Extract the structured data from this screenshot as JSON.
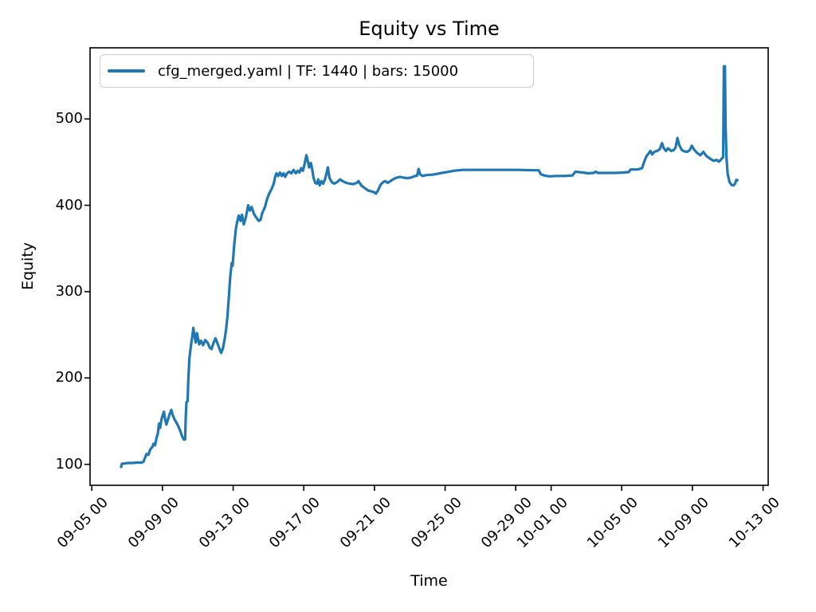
{
  "chart_data": {
    "type": "line",
    "title": "Equity vs Time",
    "xlabel": "Time",
    "ylabel": "Equity",
    "grid": false,
    "legend": {
      "position": "upper left",
      "label": "cfg_merged.yaml | TF: 1440 | bars: 15000",
      "line_color": "#1f77b4"
    },
    "x_encoding": "days since 09-05 00:00",
    "xlim_days": [
      -0.1,
      38.29
    ],
    "ylim": [
      75.7,
      582.4
    ],
    "y_ticks": [
      100,
      200,
      300,
      400,
      500
    ],
    "x_ticks": [
      {
        "label": "09-05 00",
        "day": 0
      },
      {
        "label": "09-09 00",
        "day": 4
      },
      {
        "label": "09-13 00",
        "day": 8
      },
      {
        "label": "09-17 00",
        "day": 12
      },
      {
        "label": "09-21 00",
        "day": 16
      },
      {
        "label": "09-25 00",
        "day": 20
      },
      {
        "label": "09-29 00",
        "day": 24
      },
      {
        "label": "10-01 00",
        "day": 26
      },
      {
        "label": "10-05 00",
        "day": 30
      },
      {
        "label": "10-09 00",
        "day": 34
      },
      {
        "label": "10-13 00",
        "day": 38
      }
    ],
    "series": [
      {
        "name": "cfg_merged.yaml | TF: 1440 | bars: 15000",
        "color": "#1f77b4",
        "points_day_equity": [
          [
            1.66,
            97
          ],
          [
            1.7,
            100.5
          ],
          [
            1.85,
            101
          ],
          [
            2.05,
            101.5
          ],
          [
            2.3,
            101.5
          ],
          [
            2.55,
            102
          ],
          [
            2.8,
            102
          ],
          [
            2.93,
            103
          ],
          [
            3.0,
            107
          ],
          [
            3.1,
            112
          ],
          [
            3.2,
            111
          ],
          [
            3.3,
            117
          ],
          [
            3.42,
            120
          ],
          [
            3.5,
            124
          ],
          [
            3.58,
            122
          ],
          [
            3.66,
            130
          ],
          [
            3.74,
            136
          ],
          [
            3.8,
            147
          ],
          [
            3.86,
            142
          ],
          [
            3.94,
            152
          ],
          [
            4.02,
            157
          ],
          [
            4.08,
            161
          ],
          [
            4.15,
            152
          ],
          [
            4.22,
            146
          ],
          [
            4.3,
            151
          ],
          [
            4.4,
            158
          ],
          [
            4.5,
            163
          ],
          [
            4.58,
            157
          ],
          [
            4.68,
            152
          ],
          [
            4.8,
            148
          ],
          [
            4.92,
            143
          ],
          [
            5.02,
            138
          ],
          [
            5.12,
            132
          ],
          [
            5.22,
            128.5
          ],
          [
            5.28,
            129
          ],
          [
            5.32,
            155
          ],
          [
            5.36,
            172
          ],
          [
            5.42,
            173
          ],
          [
            5.46,
            195
          ],
          [
            5.52,
            222
          ],
          [
            5.6,
            236
          ],
          [
            5.68,
            247
          ],
          [
            5.75,
            258
          ],
          [
            5.82,
            248
          ],
          [
            5.88,
            241
          ],
          [
            5.95,
            252
          ],
          [
            6.02,
            245
          ],
          [
            6.08,
            239
          ],
          [
            6.18,
            243
          ],
          [
            6.3,
            238
          ],
          [
            6.42,
            244
          ],
          [
            6.55,
            241
          ],
          [
            6.68,
            235
          ],
          [
            6.78,
            233.5
          ],
          [
            6.88,
            240
          ],
          [
            7.0,
            246
          ],
          [
            7.1,
            241
          ],
          [
            7.22,
            234
          ],
          [
            7.32,
            229
          ],
          [
            7.42,
            234
          ],
          [
            7.52,
            245
          ],
          [
            7.6,
            256
          ],
          [
            7.68,
            272
          ],
          [
            7.76,
            294
          ],
          [
            7.84,
            318
          ],
          [
            7.92,
            333
          ],
          [
            7.97,
            330
          ],
          [
            8.05,
            352
          ],
          [
            8.15,
            372
          ],
          [
            8.22,
            380
          ],
          [
            8.32,
            388
          ],
          [
            8.42,
            382
          ],
          [
            8.5,
            389
          ],
          [
            8.6,
            378
          ],
          [
            8.72,
            386
          ],
          [
            8.85,
            400
          ],
          [
            8.95,
            394
          ],
          [
            9.05,
            398
          ],
          [
            9.18,
            390
          ],
          [
            9.3,
            386
          ],
          [
            9.45,
            382
          ],
          [
            9.55,
            383
          ],
          [
            9.65,
            391
          ],
          [
            9.8,
            398
          ],
          [
            9.92,
            407
          ],
          [
            10.05,
            414
          ],
          [
            10.18,
            419
          ],
          [
            10.3,
            425
          ],
          [
            10.38,
            433
          ],
          [
            10.45,
            437
          ],
          [
            10.55,
            434
          ],
          [
            10.65,
            438
          ],
          [
            10.75,
            434
          ],
          [
            10.85,
            437
          ],
          [
            10.95,
            433
          ],
          [
            11.05,
            437
          ],
          [
            11.18,
            439
          ],
          [
            11.3,
            437
          ],
          [
            11.42,
            441
          ],
          [
            11.55,
            437
          ],
          [
            11.65,
            440
          ],
          [
            11.75,
            438
          ],
          [
            11.85,
            443
          ],
          [
            11.95,
            440
          ],
          [
            12.05,
            448
          ],
          [
            12.15,
            458
          ],
          [
            12.22,
            452
          ],
          [
            12.3,
            444
          ],
          [
            12.4,
            449
          ],
          [
            12.48,
            441
          ],
          [
            12.55,
            432
          ],
          [
            12.65,
            426
          ],
          [
            12.75,
            425
          ],
          [
            12.82,
            430
          ],
          [
            12.9,
            423
          ],
          [
            13.0,
            428
          ],
          [
            13.1,
            425
          ],
          [
            13.2,
            430
          ],
          [
            13.3,
            438
          ],
          [
            13.36,
            444
          ],
          [
            13.45,
            432
          ],
          [
            13.58,
            427
          ],
          [
            13.72,
            425
          ],
          [
            13.9,
            427
          ],
          [
            14.05,
            430
          ],
          [
            14.2,
            428
          ],
          [
            14.4,
            426
          ],
          [
            14.6,
            425
          ],
          [
            14.8,
            424.5
          ],
          [
            15.0,
            426
          ],
          [
            15.1,
            428
          ],
          [
            15.25,
            423
          ],
          [
            15.45,
            420
          ],
          [
            15.65,
            417
          ],
          [
            15.85,
            416
          ],
          [
            16.0,
            415
          ],
          [
            16.08,
            413.5
          ],
          [
            16.2,
            417
          ],
          [
            16.35,
            424
          ],
          [
            16.5,
            427
          ],
          [
            16.62,
            428
          ],
          [
            16.75,
            426
          ],
          [
            16.9,
            428
          ],
          [
            17.05,
            430
          ],
          [
            17.25,
            432
          ],
          [
            17.45,
            433
          ],
          [
            17.65,
            432
          ],
          [
            17.85,
            431.5
          ],
          [
            18.05,
            432
          ],
          [
            18.25,
            433.5
          ],
          [
            18.42,
            434.5
          ],
          [
            18.5,
            442
          ],
          [
            18.58,
            436
          ],
          [
            18.72,
            434
          ],
          [
            18.95,
            435
          ],
          [
            19.3,
            435.5
          ],
          [
            19.7,
            437
          ],
          [
            20.1,
            438.5
          ],
          [
            20.5,
            440
          ],
          [
            21.0,
            441
          ],
          [
            21.6,
            441
          ],
          [
            22.3,
            441
          ],
          [
            23.2,
            441
          ],
          [
            24.2,
            441
          ],
          [
            25.0,
            440.5
          ],
          [
            25.3,
            440.5
          ],
          [
            25.42,
            436
          ],
          [
            25.6,
            434.5
          ],
          [
            25.9,
            433.5
          ],
          [
            26.3,
            434
          ],
          [
            26.8,
            434
          ],
          [
            27.2,
            434.5
          ],
          [
            27.38,
            439
          ],
          [
            27.55,
            438.5
          ],
          [
            27.8,
            438
          ],
          [
            28.1,
            437
          ],
          [
            28.4,
            437.5
          ],
          [
            28.52,
            439
          ],
          [
            28.65,
            437.5
          ],
          [
            29.0,
            437.5
          ],
          [
            29.6,
            437.5
          ],
          [
            30.1,
            438
          ],
          [
            30.4,
            438.5
          ],
          [
            30.5,
            441.5
          ],
          [
            30.9,
            441.5
          ],
          [
            31.15,
            443
          ],
          [
            31.28,
            451
          ],
          [
            31.4,
            457
          ],
          [
            31.52,
            460
          ],
          [
            31.62,
            463
          ],
          [
            31.72,
            459
          ],
          [
            31.85,
            462
          ],
          [
            32.0,
            463
          ],
          [
            32.15,
            465
          ],
          [
            32.28,
            472
          ],
          [
            32.38,
            466
          ],
          [
            32.5,
            463
          ],
          [
            32.62,
            466
          ],
          [
            32.8,
            463
          ],
          [
            32.95,
            464
          ],
          [
            33.05,
            467
          ],
          [
            33.15,
            478
          ],
          [
            33.25,
            470
          ],
          [
            33.4,
            464
          ],
          [
            33.55,
            462.5
          ],
          [
            33.7,
            462
          ],
          [
            33.85,
            464
          ],
          [
            33.97,
            469
          ],
          [
            34.08,
            465
          ],
          [
            34.25,
            461
          ],
          [
            34.45,
            458
          ],
          [
            34.62,
            462
          ],
          [
            34.8,
            457
          ],
          [
            35.0,
            454
          ],
          [
            35.2,
            451.5
          ],
          [
            35.38,
            452.5
          ],
          [
            35.5,
            450.5
          ],
          [
            35.62,
            453
          ],
          [
            35.7,
            455
          ],
          [
            35.74,
            456
          ],
          [
            35.78,
            561
          ],
          [
            35.84,
            561
          ],
          [
            35.88,
            490
          ],
          [
            35.93,
            455
          ],
          [
            36.0,
            436
          ],
          [
            36.1,
            427
          ],
          [
            36.22,
            423.5
          ],
          [
            36.32,
            423
          ],
          [
            36.42,
            425
          ],
          [
            36.48,
            429.5
          ],
          [
            36.55,
            429
          ]
        ]
      }
    ]
  }
}
